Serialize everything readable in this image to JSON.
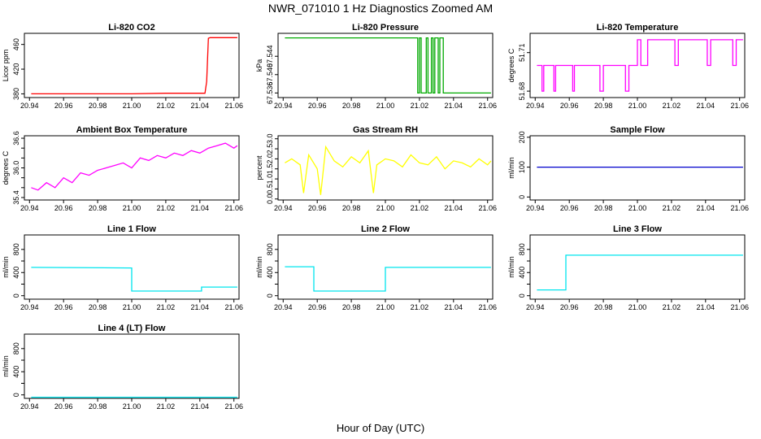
{
  "figure": {
    "title": "NWR_071010  1 Hz Diagnostics Zoomed AM",
    "xlabel": "Hour of Day (UTC)"
  },
  "chart_data": [
    {
      "id": "li820-co2",
      "type": "line",
      "title": "Li-820 CO2",
      "ylabel": "Licor ppm",
      "color": "#ff0000",
      "xlim": [
        20.937,
        21.063
      ],
      "ylim": [
        374,
        478
      ],
      "yticks": [
        380,
        420,
        460
      ],
      "xticks": [
        "20.94",
        "20.96",
        "20.98",
        "21.00",
        "21.02",
        "21.04",
        "21.06"
      ],
      "series": [
        {
          "name": "CO2",
          "x": [
            20.941,
            20.96,
            21.0,
            21.02,
            21.043,
            21.044,
            21.045,
            21.046,
            21.062
          ],
          "y": [
            380,
            380,
            380,
            381,
            381,
            400,
            470,
            471,
            471
          ]
        }
      ]
    },
    {
      "id": "li820-pressure",
      "type": "line",
      "title": "Li-820 Pressure",
      "ylabel": "kPa",
      "color": "#00aa00",
      "xlim": [
        20.937,
        21.063
      ],
      "ylim": [
        67.535,
        67.549
      ],
      "yticks": [
        67.536,
        67.54,
        67.544
      ],
      "ytick_labels": [
        "67.536",
        "67.540",
        "67.544"
      ],
      "xticks": [
        "20.94",
        "20.96",
        "20.98",
        "21.00",
        "21.02",
        "21.04",
        "21.06"
      ],
      "series": [
        {
          "name": "Pressure",
          "x": [
            20.941,
            21.019,
            21.019,
            21.02,
            21.02,
            21.021,
            21.021,
            21.024,
            21.024,
            21.025,
            21.025,
            21.027,
            21.027,
            21.028,
            21.028,
            21.029,
            21.029,
            21.031,
            21.031,
            21.032,
            21.032,
            21.034,
            21.034,
            21.062
          ],
          "y": [
            67.548,
            67.548,
            67.536,
            67.536,
            67.548,
            67.548,
            67.536,
            67.536,
            67.548,
            67.548,
            67.536,
            67.536,
            67.548,
            67.548,
            67.536,
            67.536,
            67.548,
            67.548,
            67.536,
            67.536,
            67.548,
            67.548,
            67.536,
            67.536
          ]
        }
      ]
    },
    {
      "id": "li820-temperature",
      "type": "line",
      "title": "Li-820 Temperature",
      "ylabel": "degrees C",
      "color": "#ff00ff",
      "xlim": [
        20.937,
        21.063
      ],
      "ylim": [
        51.675,
        51.725
      ],
      "yticks": [
        51.68,
        51.71
      ],
      "xticks": [
        "20.94",
        "20.96",
        "20.98",
        "21.00",
        "21.02",
        "21.04",
        "21.06"
      ],
      "series": [
        {
          "name": "Temperature",
          "x": [
            20.941,
            20.944,
            20.944,
            20.945,
            20.945,
            20.951,
            20.951,
            20.952,
            20.952,
            20.962,
            20.962,
            20.963,
            20.963,
            20.978,
            20.978,
            20.98,
            20.98,
            20.993,
            20.993,
            20.995,
            20.995,
            21.0,
            21.0,
            21.002,
            21.002,
            21.006,
            21.006,
            21.007,
            21.007,
            21.022,
            21.022,
            21.024,
            21.024,
            21.041,
            21.041,
            21.043,
            21.043,
            21.056,
            21.056,
            21.058,
            21.058,
            21.062
          ],
          "y": [
            51.7,
            51.7,
            51.68,
            51.68,
            51.7,
            51.7,
            51.68,
            51.68,
            51.7,
            51.7,
            51.68,
            51.68,
            51.7,
            51.7,
            51.68,
            51.68,
            51.7,
            51.7,
            51.68,
            51.68,
            51.7,
            51.7,
            51.72,
            51.72,
            51.7,
            51.7,
            51.72,
            51.72,
            51.72,
            51.72,
            51.7,
            51.7,
            51.72,
            51.72,
            51.7,
            51.7,
            51.72,
            51.72,
            51.7,
            51.7,
            51.72,
            51.72
          ]
        }
      ]
    },
    {
      "id": "ambient-box-temperature",
      "type": "line",
      "title": "Ambient Box Temperature",
      "ylabel": "degrees C",
      "color": "#ff00ff",
      "xlim": [
        20.937,
        21.063
      ],
      "ylim": [
        35.35,
        36.65
      ],
      "yticks": [
        35.4,
        35.6,
        35.8,
        36.0,
        36.2,
        36.4,
        36.6
      ],
      "ytick_labels": [
        "35.4",
        "",
        "",
        "36.0",
        "",
        "",
        "36.6"
      ],
      "xticks": [
        "20.94",
        "20.96",
        "20.98",
        "21.00",
        "21.02",
        "21.04",
        "21.06"
      ],
      "series": [
        {
          "name": "Ambient",
          "x": [
            20.941,
            20.945,
            20.95,
            20.955,
            20.96,
            20.965,
            20.97,
            20.975,
            20.98,
            20.985,
            20.99,
            20.995,
            21.0,
            21.005,
            21.01,
            21.015,
            21.02,
            21.025,
            21.03,
            21.035,
            21.04,
            21.045,
            21.05,
            21.055,
            21.06,
            21.062
          ],
          "y": [
            35.6,
            35.55,
            35.7,
            35.6,
            35.8,
            35.7,
            35.9,
            35.85,
            35.95,
            36.0,
            36.05,
            36.1,
            36.0,
            36.2,
            36.15,
            36.25,
            36.2,
            36.3,
            36.25,
            36.35,
            36.3,
            36.4,
            36.45,
            36.5,
            36.4,
            36.45
          ]
        }
      ]
    },
    {
      "id": "gas-stream-rh",
      "type": "line",
      "title": "Gas Stream RH",
      "ylabel": "percent",
      "color": "#ffff00",
      "xlim": [
        20.937,
        21.063
      ],
      "ylim": [
        -0.05,
        3.15
      ],
      "yticks": [
        0.0,
        0.5,
        1.0,
        1.5,
        2.0,
        2.5,
        3.0
      ],
      "ytick_labels": [
        "0.0",
        "0.5",
        "1.0",
        "1.5",
        "2.0",
        "2.5",
        "3.0"
      ],
      "xticks": [
        "20.94",
        "20.96",
        "20.98",
        "21.00",
        "21.02",
        "21.04",
        "21.06"
      ],
      "series": [
        {
          "name": "RH",
          "x": [
            20.941,
            20.945,
            20.95,
            20.952,
            20.955,
            20.96,
            20.962,
            20.965,
            20.97,
            20.975,
            20.98,
            20.985,
            20.99,
            20.993,
            20.995,
            21.0,
            21.005,
            21.01,
            21.015,
            21.02,
            21.025,
            21.03,
            21.035,
            21.04,
            21.045,
            21.05,
            21.055,
            21.06,
            21.062
          ],
          "y": [
            1.8,
            2.0,
            1.7,
            0.3,
            2.2,
            1.5,
            0.2,
            2.6,
            1.9,
            1.6,
            2.1,
            1.8,
            2.4,
            0.3,
            1.7,
            2.0,
            1.9,
            1.6,
            2.2,
            1.8,
            1.7,
            2.1,
            1.5,
            1.9,
            1.8,
            1.6,
            2.0,
            1.7,
            1.9
          ]
        }
      ]
    },
    {
      "id": "sample-flow",
      "type": "line",
      "title": "Sample Flow",
      "ylabel": "ml/min",
      "color": "#0000cc",
      "xlim": [
        20.937,
        21.063
      ],
      "ylim": [
        -10,
        205
      ],
      "yticks": [
        0,
        100,
        200
      ],
      "xticks": [
        "20.94",
        "20.96",
        "20.98",
        "21.00",
        "21.02",
        "21.04",
        "21.06"
      ],
      "series": [
        {
          "name": "Sample Flow",
          "x": [
            20.941,
            21.062
          ],
          "y": [
            100,
            100
          ]
        }
      ]
    },
    {
      "id": "line-1-flow",
      "type": "line",
      "title": "Line 1 Flow",
      "ylabel": "ml/min",
      "color": "#00e5ee",
      "xlim": [
        20.937,
        21.063
      ],
      "ylim": [
        -60,
        1050
      ],
      "yticks": [
        0,
        200,
        400,
        600,
        800
      ],
      "ytick_labels": [
        "0",
        "",
        "400",
        "",
        "800"
      ],
      "xticks": [
        "20.94",
        "20.96",
        "20.98",
        "21.00",
        "21.02",
        "21.04",
        "21.06"
      ],
      "series": [
        {
          "name": "Line 1",
          "x": [
            20.941,
            21.0,
            21.0,
            21.041,
            21.041,
            21.062
          ],
          "y": [
            490,
            480,
            80,
            80,
            150,
            150
          ]
        }
      ]
    },
    {
      "id": "line-2-flow",
      "type": "line",
      "title": "Line 2 Flow",
      "ylabel": "ml/min",
      "color": "#00e5ee",
      "xlim": [
        20.937,
        21.063
      ],
      "ylim": [
        -60,
        1050
      ],
      "yticks": [
        0,
        200,
        400,
        600,
        800
      ],
      "ytick_labels": [
        "0",
        "",
        "400",
        "",
        "800"
      ],
      "xticks": [
        "20.94",
        "20.96",
        "20.98",
        "21.00",
        "21.02",
        "21.04",
        "21.06"
      ],
      "series": [
        {
          "name": "Line 2",
          "x": [
            20.941,
            20.958,
            20.958,
            21.0,
            21.0,
            21.062
          ],
          "y": [
            500,
            500,
            80,
            80,
            490,
            490
          ]
        }
      ]
    },
    {
      "id": "line-3-flow",
      "type": "line",
      "title": "Line 3 Flow",
      "ylabel": "ml/min",
      "color": "#00e5ee",
      "xlim": [
        20.937,
        21.063
      ],
      "ylim": [
        -60,
        1050
      ],
      "yticks": [
        0,
        200,
        400,
        600,
        800
      ],
      "ytick_labels": [
        "0",
        "",
        "400",
        "",
        "800"
      ],
      "xticks": [
        "20.94",
        "20.96",
        "20.98",
        "21.00",
        "21.02",
        "21.04",
        "21.06"
      ],
      "series": [
        {
          "name": "Line 3",
          "x": [
            20.941,
            20.958,
            20.958,
            21.062
          ],
          "y": [
            100,
            100,
            700,
            700
          ]
        }
      ]
    },
    {
      "id": "line-4-lt-flow",
      "type": "line",
      "title": "Line 4 (LT) Flow",
      "ylabel": "ml/min",
      "color": "#00e5ee",
      "xlim": [
        20.937,
        21.063
      ],
      "ylim": [
        -60,
        1050
      ],
      "yticks": [
        0,
        200,
        400,
        600,
        800
      ],
      "ytick_labels": [
        "0",
        "",
        "400",
        "",
        "800"
      ],
      "xticks": [
        "20.94",
        "20.96",
        "20.98",
        "21.00",
        "21.02",
        "21.04",
        "21.06"
      ],
      "series": [
        {
          "name": "Line 4 (LT)",
          "x": [
            20.941,
            21.062
          ],
          "y": [
            -40,
            -40
          ]
        }
      ]
    }
  ]
}
